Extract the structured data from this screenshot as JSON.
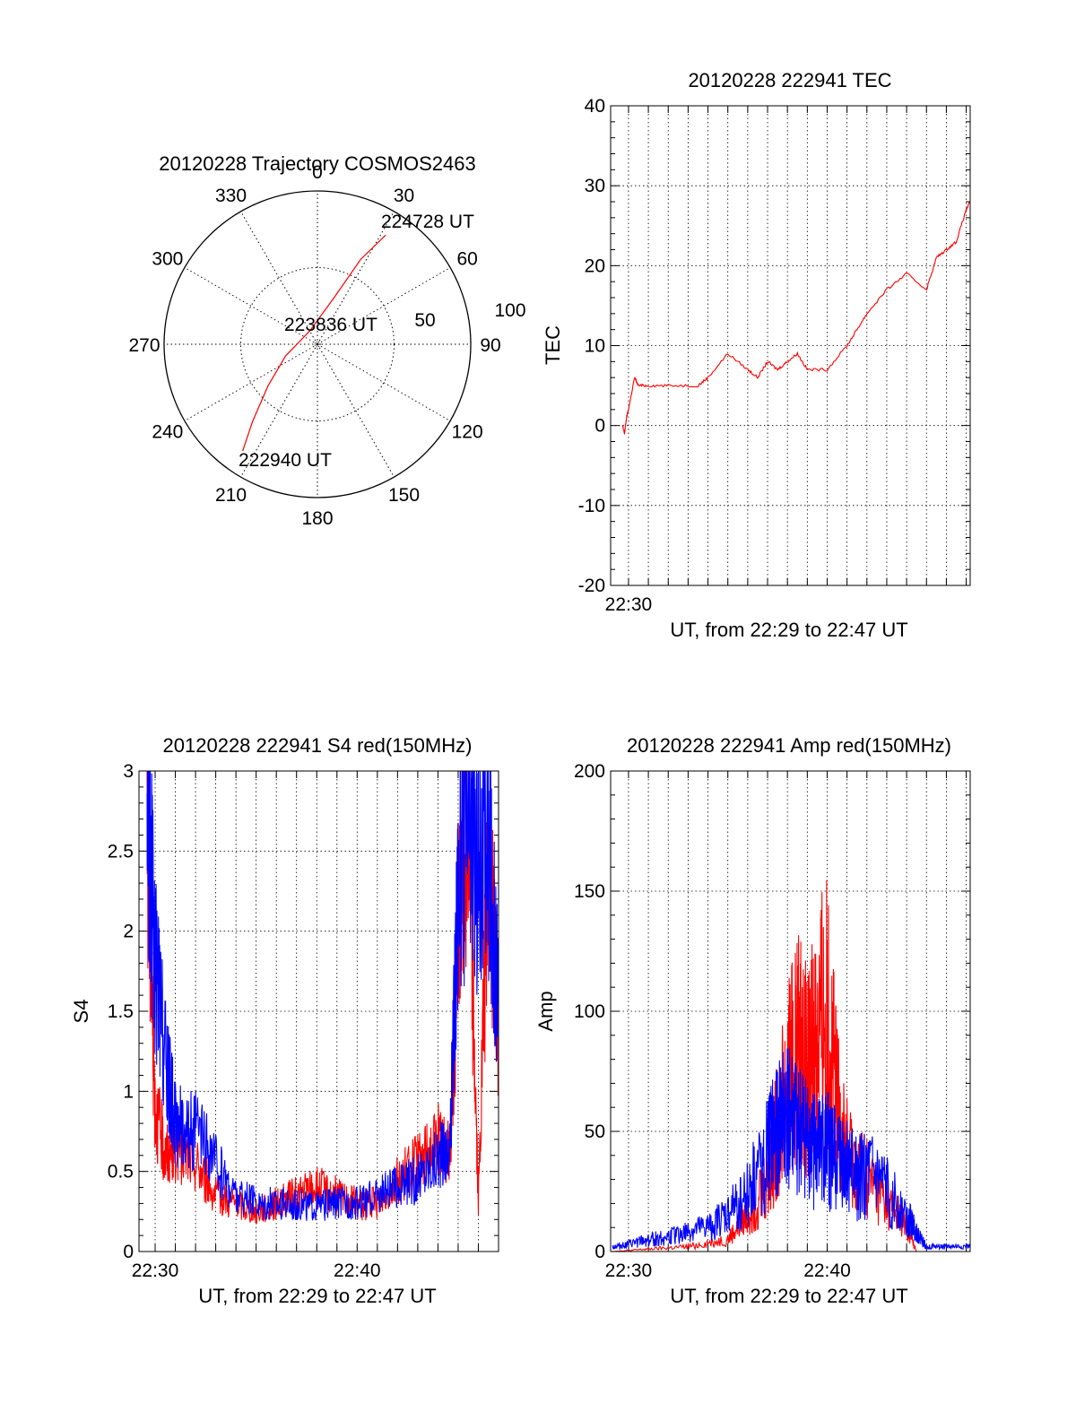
{
  "colors": {
    "red": "#ff0000",
    "blue": "#0000ff",
    "axis": "#000000",
    "grid": "#000000"
  },
  "chart_data": [
    {
      "id": "trajectory",
      "type": "polar",
      "title": "20120228 Trajectory COSMOS2463",
      "azimuth_labels": [
        "0",
        "30",
        "60",
        "90",
        "120",
        "150",
        "180",
        "210",
        "240",
        "270",
        "300",
        "330"
      ],
      "radius_labels": [
        "50",
        "100"
      ],
      "annotations": {
        "start": "222940 UT",
        "mid": "223836 UT",
        "end": "224728 UT"
      },
      "trajectory": {
        "color": "#ff0000",
        "points": [
          {
            "az": 215,
            "r": 85
          },
          {
            "az": 220,
            "r": 66
          },
          {
            "az": 230,
            "r": 42
          },
          {
            "az": 250,
            "r": 22
          },
          {
            "az": 330,
            "r": 10
          },
          {
            "az": 20,
            "r": 33
          },
          {
            "az": 27,
            "r": 62
          },
          {
            "az": 32,
            "r": 84
          }
        ]
      }
    },
    {
      "id": "tec",
      "type": "line",
      "title": "20120228 222941 TEC",
      "xlabel": "UT, from 22:29 to 22:47 UT",
      "ylabel": "TEC",
      "ylim": [
        -20,
        40
      ],
      "yticks": [
        "-20",
        "-10",
        "0",
        "10",
        "20",
        "30",
        "40"
      ],
      "xticks": [
        {
          "t": 30,
          "label": "22:30"
        }
      ],
      "xlim_minutes": [
        29.1,
        47.2
      ],
      "series": [
        {
          "color": "#ff0000",
          "x": [
            29.7,
            29.8,
            29.9,
            30.0,
            30.3,
            30.5,
            31.0,
            32.0,
            33.5,
            34.0,
            35.0,
            36.0,
            36.5,
            37.0,
            37.5,
            38.0,
            38.5,
            39.0,
            40.0,
            41.0,
            41.5,
            42.0,
            43.0,
            44.0,
            45.0,
            45.5,
            46.0,
            46.5,
            47.0,
            47.2
          ],
          "y": [
            0,
            -1,
            1,
            2,
            6,
            5,
            5,
            5,
            5,
            6,
            9,
            7,
            6,
            8,
            7,
            8,
            9,
            7,
            7,
            10,
            12,
            14,
            17,
            19,
            17,
            21,
            22,
            23,
            27,
            28
          ]
        }
      ]
    },
    {
      "id": "s4",
      "type": "line",
      "title": "20120228 222941 S4 red(150MHz)",
      "xlabel": "UT, from 22:29 to 22:47 UT",
      "ylabel": "S4",
      "ylim": [
        0,
        3
      ],
      "yticks": [
        "0",
        "0.5",
        "1",
        "1.5",
        "2",
        "2.5",
        "3"
      ],
      "xticks": [
        {
          "t": 30,
          "label": "22:30"
        },
        {
          "t": 40,
          "label": "22:40"
        }
      ],
      "xlim_minutes": [
        29.2,
        47.0
      ],
      "series": [
        {
          "color": "#ff0000",
          "x": [
            29.6,
            30.0,
            30.5,
            31.0,
            32.0,
            33.0,
            34.0,
            35.0,
            36.0,
            37.0,
            38.0,
            39.0,
            40.0,
            41.0,
            42.0,
            43.0,
            44.0,
            44.6,
            45.0,
            45.5,
            46.0,
            46.5,
            47.0
          ],
          "y": [
            2.6,
            0.9,
            0.6,
            0.65,
            0.55,
            0.35,
            0.3,
            0.25,
            0.3,
            0.35,
            0.4,
            0.35,
            0.3,
            0.3,
            0.45,
            0.55,
            0.7,
            0.6,
            2.0,
            2.8,
            0.3,
            2.5,
            1.4
          ]
        },
        {
          "color": "#0000ff",
          "x": [
            29.6,
            30.0,
            30.5,
            31.0,
            32.0,
            33.0,
            34.0,
            35.0,
            36.0,
            37.0,
            38.0,
            39.0,
            40.0,
            41.0,
            42.0,
            43.0,
            44.0,
            44.6,
            45.0,
            45.5,
            46.0,
            46.5,
            47.0
          ],
          "y": [
            2.9,
            1.8,
            1.2,
            0.8,
            0.75,
            0.55,
            0.35,
            0.3,
            0.3,
            0.3,
            0.28,
            0.3,
            0.3,
            0.35,
            0.4,
            0.45,
            0.6,
            0.65,
            2.3,
            2.7,
            2.4,
            2.5,
            1.6
          ]
        }
      ]
    },
    {
      "id": "amp",
      "type": "line",
      "title": "20120228 222941 Amp red(150MHz)",
      "xlabel": "UT, from 22:29 to 22:47 UT",
      "ylabel": "Amp",
      "ylim": [
        0,
        200
      ],
      "yticks": [
        "0",
        "50",
        "100",
        "150",
        "200"
      ],
      "xticks": [
        {
          "t": 30,
          "label": "22:30"
        },
        {
          "t": 40,
          "label": "22:40"
        }
      ],
      "xlim_minutes": [
        29.1,
        47.2
      ],
      "series": [
        {
          "color": "#ff0000",
          "x": [
            29.2,
            31.0,
            33.0,
            35.0,
            36.0,
            37.0,
            37.5,
            38.0,
            38.5,
            39.0,
            39.5,
            40.0,
            40.5,
            41.0,
            42.0,
            43.0,
            44.0,
            44.5
          ],
          "y": [
            0,
            1,
            2,
            5,
            15,
            30,
            50,
            70,
            85,
            75,
            90,
            100,
            60,
            40,
            30,
            20,
            10,
            0
          ]
        },
        {
          "color": "#0000ff",
          "x": [
            29.2,
            30.0,
            31.0,
            32.0,
            33.0,
            34.0,
            35.0,
            36.0,
            37.0,
            37.5,
            38.0,
            38.5,
            39.0,
            39.5,
            40.0,
            40.5,
            41.0,
            41.5,
            42.0,
            43.0,
            44.0,
            44.5,
            45.0,
            46.0,
            47.2
          ],
          "y": [
            2,
            3,
            5,
            6,
            8,
            10,
            15,
            25,
            40,
            50,
            55,
            50,
            45,
            40,
            42,
            38,
            35,
            30,
            32,
            25,
            15,
            8,
            2,
            2,
            2
          ]
        }
      ]
    }
  ]
}
